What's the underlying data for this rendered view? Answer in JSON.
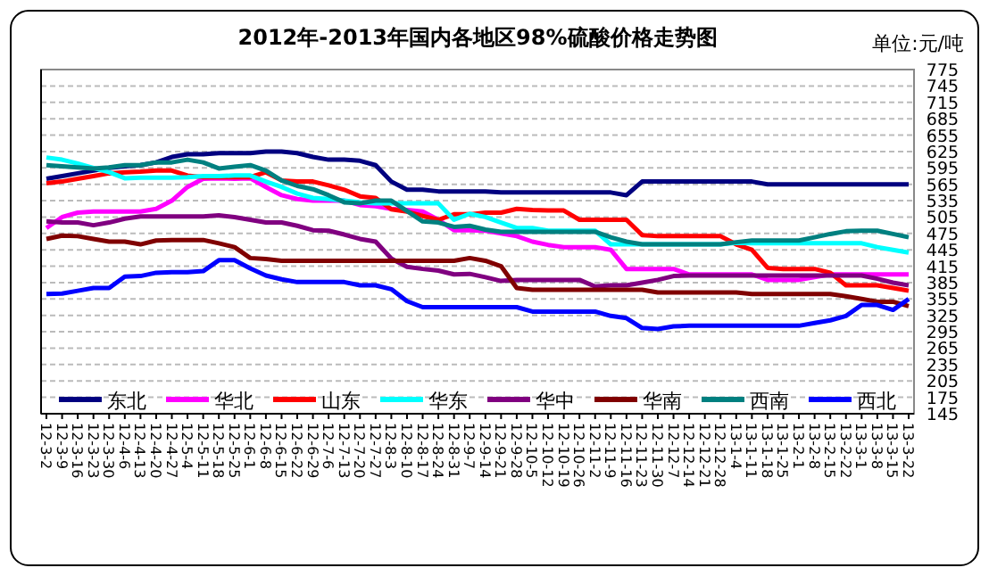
{
  "chart_data": {
    "type": "line",
    "title": "2012年-2013年国内各地区98%硫酸价格走势图",
    "annotations": [
      "单位:元/吨"
    ],
    "categories": [
      "12-3-2",
      "12-3-9",
      "12-3-16",
      "12-3-23",
      "12-3-30",
      "12-4-6",
      "12-4-13",
      "12-4-20",
      "12-4-27",
      "12-5-4",
      "12-5-11",
      "12-5-18",
      "12-5-25",
      "12-6-1",
      "12-6-8",
      "12-6-15",
      "12-6-22",
      "12-6-29",
      "12-7-6",
      "12-7-13",
      "12-7-20",
      "12-7-27",
      "12-8-3",
      "12-8-10",
      "12-8-17",
      "12-8-24",
      "12-8-31",
      "12-9-7",
      "12-9-14",
      "12-9-21",
      "12-9-28",
      "12-10-5",
      "12-10-12",
      "12-10-19",
      "12-10-26",
      "12-11-2",
      "12-11-9",
      "12-11-16",
      "12-11-23",
      "12-11-30",
      "12-12-7",
      "12-12-14",
      "12-12-21",
      "12-12-28",
      "13-1-4",
      "13-1-11",
      "13-1-18",
      "13-1-25",
      "13-2-1",
      "13-2-8",
      "13-2-15",
      "13-2-22",
      "13-3-1",
      "13-3-8",
      "13-3-15",
      "13-3-22"
    ],
    "series": [
      {
        "name": "东北",
        "color": "#000080",
        "values": [
          575,
          580,
          585,
          590,
          595,
          598,
          600,
          605,
          615,
          620,
          620,
          622,
          622,
          622,
          625,
          625,
          622,
          615,
          610,
          610,
          608,
          600,
          570,
          555,
          555,
          552,
          552,
          552,
          552,
          550,
          550,
          550,
          550,
          550,
          550,
          550,
          550,
          545,
          570,
          570,
          570,
          570,
          570,
          570,
          570,
          570,
          565,
          565,
          565,
          565,
          565,
          565,
          565,
          565,
          565,
          565
        ]
      },
      {
        "name": "华北",
        "color": "#ff00ff",
        "values": [
          485,
          505,
          513,
          515,
          515,
          515,
          515,
          520,
          535,
          560,
          575,
          576,
          575,
          576,
          560,
          545,
          538,
          535,
          535,
          535,
          527,
          525,
          520,
          518,
          515,
          500,
          481,
          481,
          480,
          475,
          470,
          460,
          454,
          450,
          450,
          450,
          445,
          410,
          410,
          410,
          410,
          400,
          400,
          400,
          400,
          400,
          390,
          390,
          390,
          395,
          400,
          400,
          400,
          400,
          400,
          400
        ]
      },
      {
        "name": "山东",
        "color": "#ff0000",
        "values": [
          567,
          570,
          575,
          580,
          585,
          587,
          588,
          590,
          590,
          581,
          578,
          578,
          578,
          578,
          587,
          572,
          570,
          570,
          563,
          555,
          543,
          540,
          519,
          515,
          507,
          500,
          510,
          510,
          513,
          513,
          520,
          518,
          517,
          517,
          500,
          500,
          500,
          500,
          472,
          470,
          470,
          470,
          470,
          470,
          455,
          445,
          412,
          410,
          410,
          410,
          403,
          380,
          380,
          380,
          375,
          370
        ]
      },
      {
        "name": "华东",
        "color": "#00ffff",
        "values": [
          614,
          610,
          603,
          595,
          587,
          576,
          577,
          577,
          577,
          578,
          580,
          580,
          581,
          581,
          570,
          560,
          548,
          540,
          538,
          535,
          532,
          530,
          530,
          530,
          530,
          530,
          500,
          511,
          505,
          495,
          485,
          485,
          480,
          480,
          480,
          480,
          455,
          455,
          455,
          455,
          455,
          455,
          455,
          455,
          458,
          457,
          457,
          457,
          457,
          457,
          457,
          457,
          457,
          450,
          445,
          440
        ]
      },
      {
        "name": "华中",
        "color": "#800080",
        "values": [
          497,
          495,
          495,
          490,
          495,
          502,
          506,
          506,
          506,
          506,
          506,
          508,
          505,
          500,
          495,
          495,
          489,
          481,
          480,
          473,
          465,
          460,
          429,
          414,
          410,
          407,
          400,
          401,
          395,
          388,
          390,
          390,
          390,
          390,
          390,
          378,
          380,
          380,
          385,
          390,
          397,
          398,
          398,
          398,
          398,
          398,
          398,
          398,
          398,
          398,
          398,
          398,
          398,
          392,
          385,
          380
        ]
      },
      {
        "name": "华南",
        "color": "#800000",
        "values": [
          465,
          471,
          470,
          465,
          460,
          460,
          455,
          462,
          463,
          463,
          463,
          457,
          450,
          430,
          428,
          425,
          425,
          425,
          425,
          425,
          425,
          425,
          425,
          425,
          425,
          425,
          425,
          430,
          425,
          415,
          375,
          372,
          372,
          372,
          372,
          372,
          372,
          372,
          372,
          367,
          367,
          367,
          367,
          367,
          367,
          364,
          364,
          364,
          364,
          364,
          364,
          360,
          355,
          350,
          350,
          342
        ]
      },
      {
        "name": "西南",
        "color": "#008080",
        "values": [
          600,
          598,
          596,
          594,
          596,
          600,
          600,
          605,
          605,
          610,
          605,
          594,
          597,
          600,
          590,
          572,
          562,
          556,
          545,
          532,
          530,
          535,
          535,
          516,
          497,
          495,
          487,
          489,
          482,
          478,
          478,
          478,
          478,
          478,
          478,
          478,
          468,
          460,
          455,
          455,
          455,
          455,
          455,
          455,
          459,
          462,
          462,
          462,
          462,
          468,
          474,
          479,
          480,
          480,
          474,
          468
        ]
      },
      {
        "name": "西北",
        "color": "#0000ff",
        "values": [
          364,
          365,
          370,
          375,
          375,
          396,
          397,
          403,
          404,
          404,
          406,
          426,
          426,
          411,
          398,
          391,
          386,
          386,
          386,
          386,
          380,
          380,
          373,
          351,
          340,
          340,
          340,
          340,
          340,
          340,
          340,
          332,
          332,
          332,
          332,
          332,
          324,
          320,
          302,
          300,
          305,
          306,
          306,
          306,
          306,
          306,
          306,
          306,
          306,
          311,
          316,
          324,
          344,
          344,
          335,
          355
        ]
      }
    ],
    "ylim": [
      145,
      775
    ],
    "yticks": [
      145,
      175,
      205,
      235,
      265,
      295,
      325,
      355,
      385,
      415,
      445,
      475,
      505,
      535,
      565,
      595,
      625,
      655,
      685,
      715,
      745,
      775
    ],
    "grid": "y",
    "legend": "bottom",
    "marker": "none",
    "line_style": "solid"
  }
}
